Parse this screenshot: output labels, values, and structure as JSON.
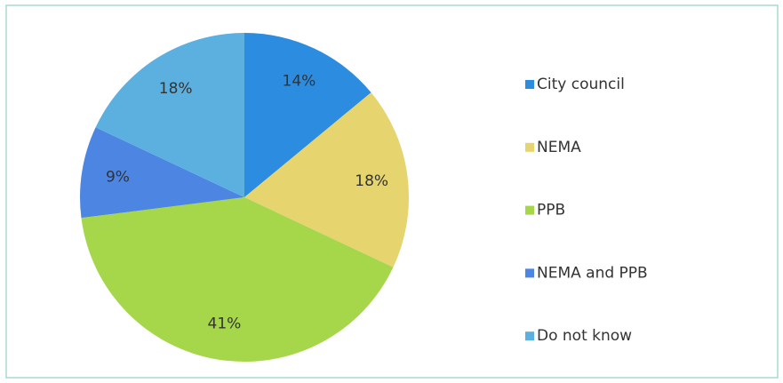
{
  "chart_data": {
    "type": "pie",
    "categories": [
      "City council",
      "NEMA",
      "PPB",
      "NEMA and PPB",
      "Do not know"
    ],
    "values": [
      14,
      18,
      41,
      9,
      18
    ],
    "value_labels": [
      "14%",
      "18%",
      "41%",
      "9%",
      "18%"
    ],
    "colors": [
      "#2b8ce0",
      "#e6d46e",
      "#a6d64a",
      "#4d86e2",
      "#5cb0e0"
    ],
    "legend": "right"
  }
}
